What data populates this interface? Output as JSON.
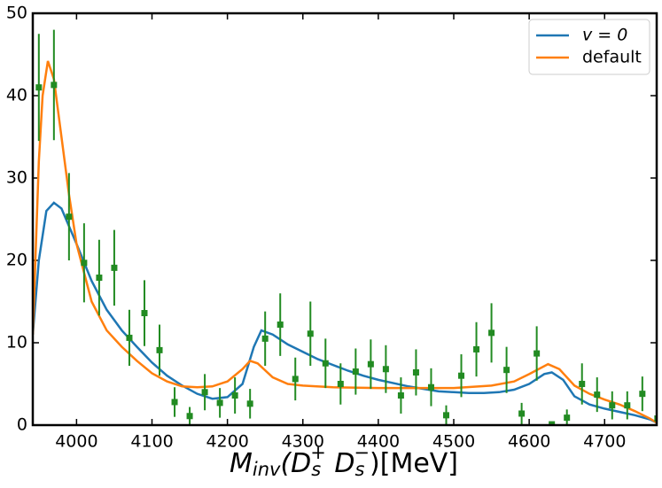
{
  "chart_data": {
    "type": "line",
    "x_label": [
      "M",
      "inv",
      "(D",
      "s",
      "+",
      " D",
      "s",
      "−",
      ")[MeV]"
    ],
    "xlim": [
      3942,
      4769
    ],
    "ylim": [
      0,
      50
    ],
    "xticks": [
      4000,
      4100,
      4200,
      4300,
      4400,
      4500,
      4600,
      4700
    ],
    "yticks": [
      0,
      10,
      20,
      30,
      40,
      50
    ],
    "legend": "upper right",
    "series": [
      {
        "name": "v = 0",
        "color": "#1f77b4",
        "x": [
          3942,
          3950,
          3960,
          3970,
          3980,
          4000,
          4020,
          4040,
          4060,
          4080,
          4100,
          4120,
          4140,
          4160,
          4180,
          4200,
          4220,
          4235,
          4245,
          4260,
          4280,
          4300,
          4320,
          4340,
          4360,
          4380,
          4400,
          4420,
          4440,
          4460,
          4480,
          4500,
          4520,
          4540,
          4560,
          4580,
          4600,
          4620,
          4630,
          4645,
          4660,
          4680,
          4700,
          4720,
          4740,
          4760,
          4769
        ],
        "values": [
          11,
          20,
          26,
          27,
          26.3,
          22,
          17.5,
          14,
          11.5,
          9.5,
          7.6,
          6,
          4.8,
          3.8,
          3.2,
          3.4,
          5,
          9.5,
          11.5,
          11,
          9.8,
          8.9,
          8,
          7.3,
          6.6,
          6,
          5.5,
          5.1,
          4.7,
          4.4,
          4.1,
          4.0,
          3.9,
          3.9,
          4.0,
          4.3,
          5.0,
          6.2,
          6.4,
          5.5,
          3.5,
          2.5,
          2.0,
          1.6,
          1.2,
          0.7,
          0.3
        ]
      },
      {
        "name": "default",
        "color": "#ff7f0e",
        "x": [
          3942,
          3950,
          3955,
          3962,
          3970,
          3980,
          3990,
          4000,
          4020,
          4040,
          4060,
          4080,
          4100,
          4120,
          4140,
          4160,
          4180,
          4200,
          4220,
          4230,
          4240,
          4260,
          4280,
          4300,
          4340,
          4400,
          4450,
          4500,
          4550,
          4580,
          4600,
          4625,
          4640,
          4660,
          4680,
          4700,
          4720,
          4740,
          4760,
          4769
        ],
        "values": [
          11,
          32,
          40,
          44.2,
          42,
          35,
          28,
          22,
          15,
          11.5,
          9.5,
          7.8,
          6.3,
          5.3,
          4.7,
          4.6,
          4.7,
          5.3,
          6.8,
          7.8,
          7.5,
          5.8,
          5.0,
          4.8,
          4.6,
          4.5,
          4.5,
          4.5,
          4.8,
          5.3,
          6.2,
          7.4,
          6.8,
          4.8,
          3.8,
          3.1,
          2.5,
          1.7,
          0.8,
          0.3
        ]
      },
      {
        "color": "#228b22",
        "marker": "square",
        "x": [
          3950,
          3970,
          3990,
          4010,
          4030,
          4050,
          4070,
          4090,
          4110,
          4130,
          4150,
          4170,
          4190,
          4210,
          4230,
          4250,
          4270,
          4290,
          4310,
          4330,
          4350,
          4370,
          4390,
          4410,
          4430,
          4450,
          4470,
          4490,
          4510,
          4530,
          4550,
          4570,
          4590,
          4610,
          4630,
          4650,
          4670,
          4690,
          4710,
          4730,
          4750,
          4770
        ],
        "values": [
          41.0,
          41.3,
          25.3,
          19.7,
          17.9,
          19.1,
          10.6,
          13.6,
          9.1,
          2.8,
          1.1,
          4.0,
          2.7,
          3.6,
          2.6,
          10.5,
          12.2,
          5.6,
          11.1,
          7.5,
          5.0,
          6.5,
          7.4,
          6.8,
          3.6,
          6.4,
          4.6,
          1.2,
          6.0,
          9.2,
          11.2,
          6.7,
          1.4,
          8.7,
          0.1,
          0.9,
          5.0,
          3.7,
          2.4,
          2.4,
          3.8,
          0.8
        ],
        "errors": [
          6.5,
          6.7,
          5.3,
          4.8,
          4.6,
          4.6,
          3.4,
          4.0,
          3.1,
          1.8,
          1.1,
          2.2,
          1.8,
          2.2,
          1.8,
          3.3,
          3.8,
          2.6,
          3.9,
          3.0,
          2.5,
          2.8,
          3.0,
          2.9,
          2.2,
          2.8,
          2.3,
          1.2,
          2.6,
          3.3,
          3.6,
          2.8,
          1.3,
          3.3,
          0.3,
          1.0,
          2.5,
          2.1,
          1.7,
          1.7,
          2.1,
          0.8
        ]
      }
    ]
  }
}
